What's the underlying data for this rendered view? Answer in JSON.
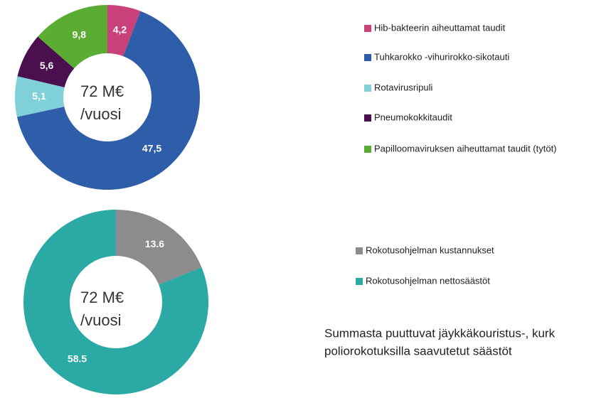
{
  "chart_data": [
    {
      "type": "donut",
      "categories": [
        "Hib-bakteerin aiheuttamat taudit",
        "Tuhkarokko -vihurirokko-sikotauti",
        "Rotavirusripuli",
        "Pneumokokkitaudit",
        "Papilloomaviruksen aiheuttamat taudit (tytöt)"
      ],
      "values": [
        4.2,
        47.5,
        5.1,
        5.6,
        9.8
      ],
      "value_labels": [
        "4,2",
        "47,5",
        "5,1",
        "5,6",
        "9,8"
      ],
      "colors": [
        "#c9407a",
        "#2e5eaa",
        "#7fd0d8",
        "#4a0f4f",
        "#5aad32"
      ],
      "center_label": [
        "72 M€",
        "/vuosi"
      ]
    },
    {
      "type": "donut",
      "categories": [
        "Rokotusohjelman kustannukset",
        "Rokotusohjelman nettosäästöt"
      ],
      "values": [
        13.6,
        58.5
      ],
      "colors": [
        "#8c8c8c",
        "#2aa9a5"
      ],
      "center_label": [
        "72 M€",
        "/vuosi"
      ]
    }
  ],
  "footnote": [
    "Summasta puuttuvat jäykkäkouristus-, kurk",
    "poliorokotuksilla saavutetut säästöt"
  ]
}
